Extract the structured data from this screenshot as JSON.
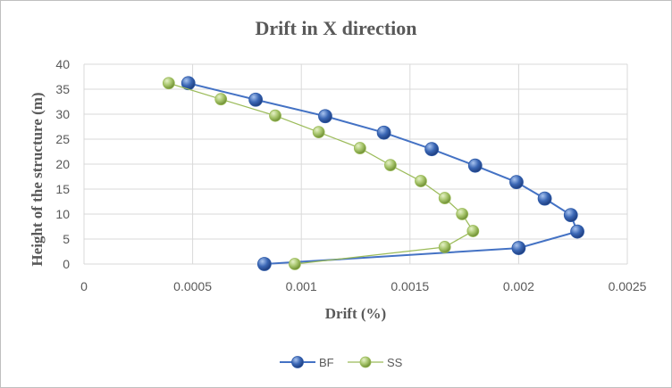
{
  "chart_data": {
    "type": "scatter",
    "title": "Drift in X direction",
    "xlabel": "Drift (%)",
    "ylabel": "Height of the structure (m)",
    "xlim": [
      0,
      0.0025
    ],
    "ylim": [
      0,
      40
    ],
    "x_ticks": [
      "0",
      "0.0005",
      "0.001",
      "0.0015",
      "0.002",
      "0.0025"
    ],
    "y_ticks": [
      "0",
      "5",
      "10",
      "15",
      "20",
      "25",
      "30",
      "35",
      "40"
    ],
    "grid": true,
    "legend_position": "bottom",
    "series": [
      {
        "name": "BF",
        "color": "#2e5aa8",
        "line_color": "#4472c4",
        "points": [
          {
            "x": 0.00083,
            "y": 0
          },
          {
            "x": 0.002,
            "y": 3.2
          },
          {
            "x": 0.00227,
            "y": 6.5
          },
          {
            "x": 0.00224,
            "y": 9.8
          },
          {
            "x": 0.00212,
            "y": 13.1
          },
          {
            "x": 0.00199,
            "y": 16.4
          },
          {
            "x": 0.0018,
            "y": 19.7
          },
          {
            "x": 0.0016,
            "y": 23
          },
          {
            "x": 0.00138,
            "y": 26.3
          },
          {
            "x": 0.00111,
            "y": 29.6
          },
          {
            "x": 0.00079,
            "y": 32.9
          },
          {
            "x": 0.00048,
            "y": 36.2
          }
        ]
      },
      {
        "name": "SS",
        "color": "#9bbb59",
        "line_color": "#9bbb59",
        "points": [
          {
            "x": 0.00097,
            "y": 0
          },
          {
            "x": 0.00166,
            "y": 3.4
          },
          {
            "x": 0.00179,
            "y": 6.6
          },
          {
            "x": 0.00174,
            "y": 10
          },
          {
            "x": 0.00166,
            "y": 13.2
          },
          {
            "x": 0.00155,
            "y": 16.6
          },
          {
            "x": 0.00141,
            "y": 19.8
          },
          {
            "x": 0.00127,
            "y": 23.2
          },
          {
            "x": 0.00108,
            "y": 26.4
          },
          {
            "x": 0.00088,
            "y": 29.7
          },
          {
            "x": 0.00063,
            "y": 33
          },
          {
            "x": 0.00039,
            "y": 36.2
          }
        ]
      }
    ]
  }
}
